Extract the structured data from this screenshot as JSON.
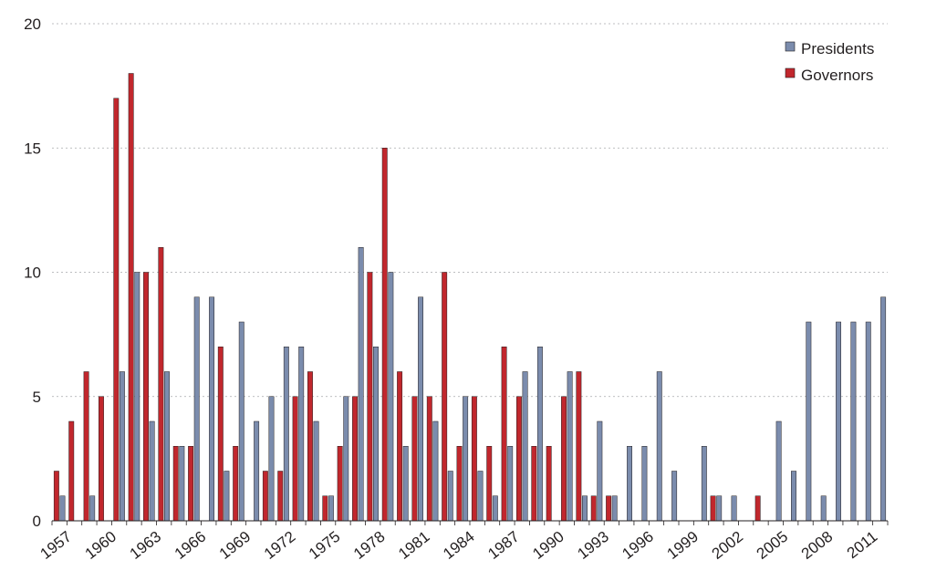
{
  "chart_data": {
    "type": "bar",
    "title": "",
    "xlabel": "",
    "ylabel": "",
    "ylim": [
      0,
      20
    ],
    "yticks": [
      0,
      5,
      10,
      15,
      20
    ],
    "grid": true,
    "legend_position": "top-right",
    "x": [
      1957,
      1958,
      1959,
      1960,
      1961,
      1962,
      1963,
      1964,
      1965,
      1966,
      1967,
      1968,
      1969,
      1970,
      1971,
      1972,
      1973,
      1974,
      1975,
      1976,
      1977,
      1978,
      1979,
      1980,
      1981,
      1982,
      1983,
      1984,
      1985,
      1986,
      1987,
      1988,
      1989,
      1990,
      1991,
      1992,
      1993,
      1994,
      1995,
      1996,
      1997,
      1998,
      1999,
      2000,
      2001,
      2002,
      2003,
      2004,
      2005,
      2006,
      2007,
      2008,
      2009,
      2010,
      2011,
      2012
    ],
    "xtick_labels": [
      "1957",
      "1960",
      "1963",
      "1966",
      "1969",
      "1972",
      "1975",
      "1978",
      "1981",
      "1984",
      "1987",
      "1990",
      "1993",
      "1996",
      "1999",
      "2002",
      "2005",
      "2008",
      "2011"
    ],
    "series": [
      {
        "name": "Presidents",
        "color": "#7b8cad",
        "values": [
          1,
          0,
          1,
          0,
          6,
          10,
          4,
          6,
          3,
          9,
          9,
          2,
          8,
          4,
          5,
          7,
          7,
          4,
          1,
          5,
          11,
          7,
          10,
          3,
          9,
          4,
          2,
          5,
          2,
          1,
          3,
          6,
          7,
          0,
          6,
          1,
          4,
          1,
          3,
          3,
          6,
          2,
          0,
          3,
          1,
          1,
          0,
          0,
          4,
          2,
          8,
          1,
          8,
          8,
          8,
          9
        ]
      },
      {
        "name": "Governors",
        "color": "#c1272d",
        "values": [
          2,
          4,
          6,
          5,
          17,
          18,
          10,
          11,
          3,
          3,
          0,
          7,
          3,
          0,
          2,
          2,
          5,
          6,
          1,
          3,
          5,
          10,
          15,
          6,
          5,
          5,
          10,
          3,
          5,
          3,
          7,
          5,
          3,
          3,
          5,
          6,
          1,
          1,
          0,
          0,
          0,
          0,
          0,
          0,
          1,
          0,
          0,
          1,
          0,
          0,
          0,
          0,
          0,
          0,
          0,
          0
        ]
      }
    ]
  }
}
